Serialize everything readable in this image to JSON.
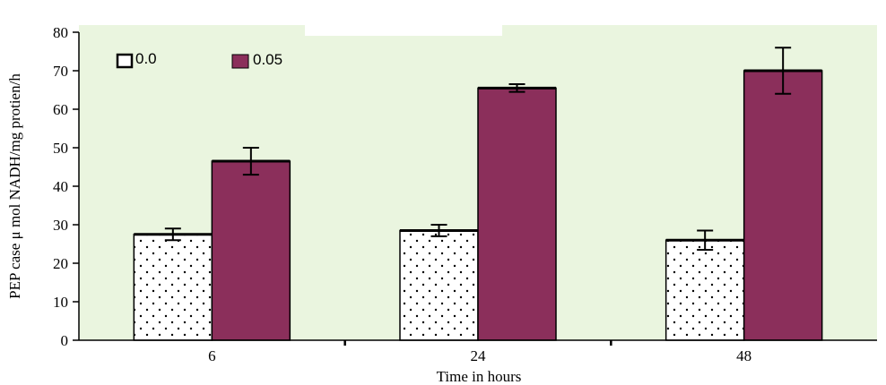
{
  "chart_data": {
    "type": "bar",
    "title": "",
    "xlabel": "Time in hours",
    "ylabel": "PEP case μ mol NADH/mg protien/h",
    "categories": [
      "6",
      "24",
      "48"
    ],
    "ylim": [
      0,
      80
    ],
    "yticks": [
      "0",
      "10",
      "20",
      "30",
      "40",
      "50",
      "60",
      "70",
      "80"
    ],
    "grid": false,
    "legend_position": "top-left",
    "plot_background": "#eaf5df",
    "series": [
      {
        "name": "0.0",
        "values": [
          27.5,
          28.5,
          26.0
        ],
        "errors": [
          1.5,
          1.5,
          2.5
        ],
        "fill": "#ffffff",
        "pattern": "dotted"
      },
      {
        "name": "0.05",
        "values": [
          46.5,
          65.5,
          70.0
        ],
        "errors": [
          3.5,
          1.0,
          6.0
        ],
        "fill": "#8b2f5b",
        "pattern": "solid"
      }
    ]
  }
}
